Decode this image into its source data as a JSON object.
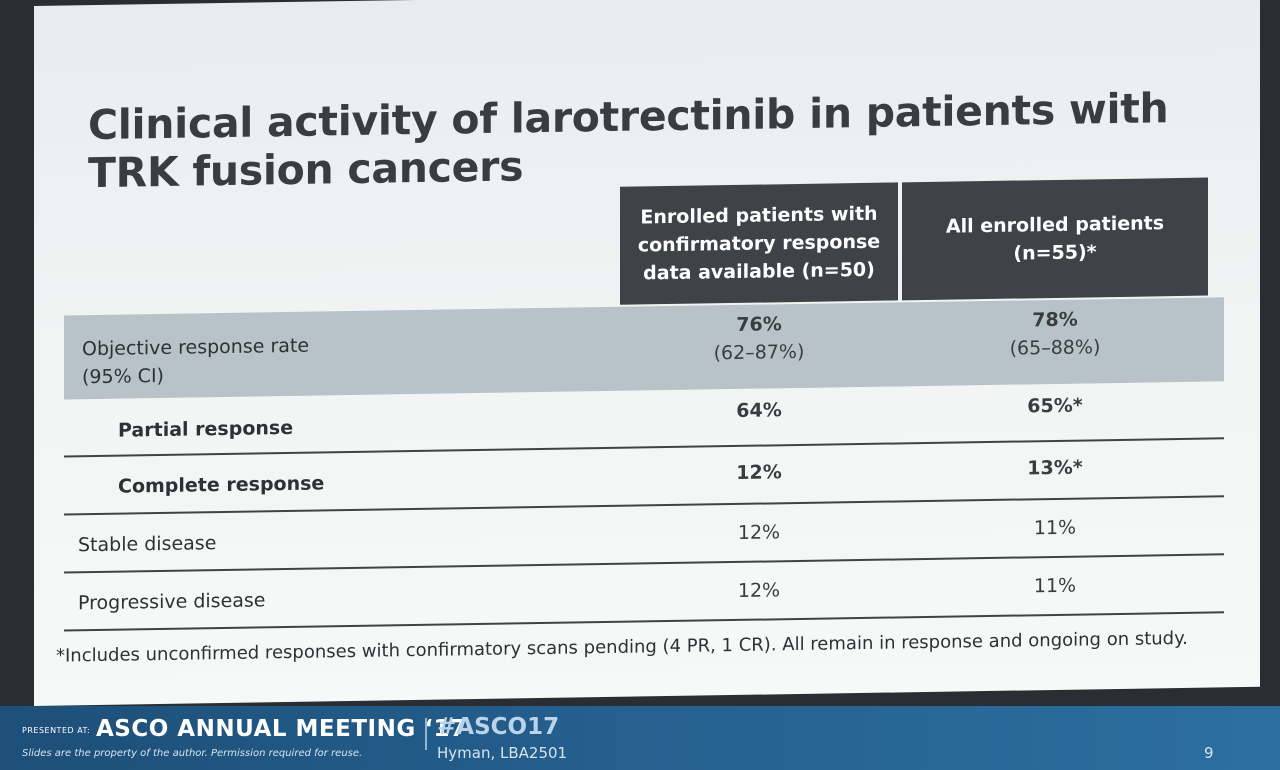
{
  "slide": {
    "title": "Clinical activity of larotrectinib in patients with TRK fusion cancers",
    "table": {
      "header": {
        "col1": "Enrolled patients with confirmatory response data available (n=50)",
        "col2": "All enrolled patients (n=55)*"
      },
      "rows": [
        {
          "label_line1": "Objective response rate",
          "label_line2": "(95% CI)",
          "v1_line1": "76%",
          "v1_line2": "(62–87%)",
          "v2_line1": "78%",
          "v2_line2": "(65–88%)"
        },
        {
          "label": "Partial response",
          "v1": "64%",
          "v2": "65%*"
        },
        {
          "label": "Complete response",
          "v1": "12%",
          "v2": "13%*"
        },
        {
          "label": "Stable disease",
          "v1": "12%",
          "v2": "11%"
        },
        {
          "label": "Progressive disease",
          "v1": "12%",
          "v2": "11%"
        }
      ]
    },
    "footnote": "*Includes unconfirmed responses with confirmatory scans pending (4 PR, 1 CR). All remain in response and ongoing on study."
  },
  "footer": {
    "presented_at": "PRESENTED AT:",
    "meeting": "ASCO ANNUAL MEETING ‘17",
    "hashtag": "#ASCO17",
    "property": "Slides are the property of the author. Permission required for reuse.",
    "author": "Hyman, LBA2501",
    "page": "9"
  },
  "colors": {
    "header_bg": "#3f4246",
    "highlight_row": "#b7c3c8",
    "footer_bar": "#25608f"
  }
}
